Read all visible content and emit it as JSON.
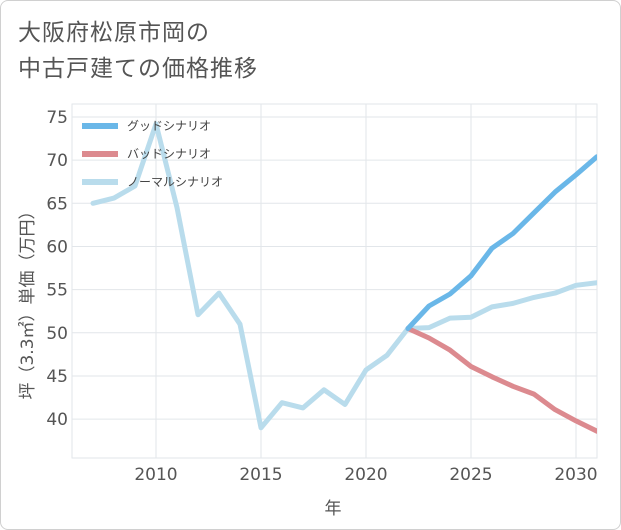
{
  "title": {
    "line1": "大阪府松原市岡の",
    "line2": "中古戸建ての価格推移"
  },
  "chart_data": {
    "type": "line",
    "xlabel": "年",
    "ylabel": "坪（3.3㎡）単価（万円）",
    "xlim": [
      2006,
      2031
    ],
    "ylim": [
      35.5,
      76.5
    ],
    "x_ticks": [
      2010,
      2015,
      2020,
      2025,
      2030
    ],
    "y_ticks": [
      40,
      45,
      50,
      55,
      60,
      65,
      70,
      75
    ],
    "grid": true,
    "legend_position": "top-left",
    "series": [
      {
        "name": "グッドシナリオ",
        "color": "#6ab7e8",
        "x": [
          2022,
          2023,
          2024,
          2025,
          2026,
          2027,
          2028,
          2029,
          2030,
          2031
        ],
        "y": [
          50.5,
          53.1,
          54.5,
          56.6,
          59.8,
          61.5,
          63.9,
          66.3,
          68.3,
          70.4
        ]
      },
      {
        "name": "バッドシナリオ",
        "color": "#dc8a8f",
        "x": [
          2022,
          2023,
          2024,
          2025,
          2026,
          2027,
          2028,
          2029,
          2030,
          2031
        ],
        "y": [
          50.5,
          49.4,
          48.0,
          46.1,
          44.9,
          43.8,
          42.9,
          41.1,
          39.8,
          38.6
        ]
      },
      {
        "name": "ノーマルシナリオ",
        "color": "#b9dcec",
        "x": [
          2007,
          2008,
          2009,
          2010,
          2011,
          2012,
          2013,
          2014,
          2015,
          2016,
          2017,
          2018,
          2019,
          2020,
          2021,
          2022,
          2023,
          2024,
          2025,
          2026,
          2027,
          2028,
          2029,
          2030,
          2031
        ],
        "y": [
          65.0,
          65.6,
          67.0,
          74.2,
          64.5,
          52.1,
          54.6,
          51.0,
          39.0,
          41.9,
          41.3,
          43.4,
          41.7,
          45.7,
          47.4,
          50.5,
          50.6,
          51.7,
          51.8,
          53.0,
          53.4,
          54.1,
          54.6,
          55.5,
          55.8
        ]
      }
    ]
  }
}
